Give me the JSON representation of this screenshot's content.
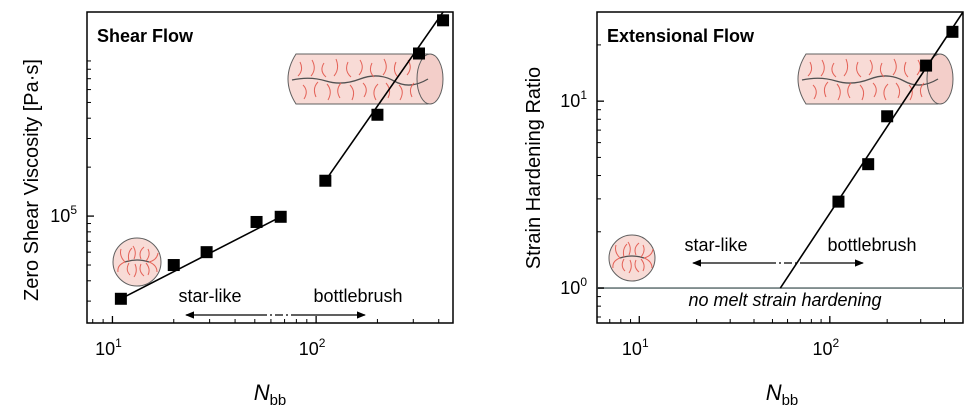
{
  "chart_data": [
    {
      "type": "scatter",
      "title": "Shear Flow",
      "xlabel": {
        "main": "N",
        "sub": "bb"
      },
      "ylabel": "Zero Shear Viscosity [Pa·s]",
      "xscale": "log",
      "yscale": "log",
      "xlim": [
        7.5,
        470
      ],
      "ylim": [
        22000,
        1800000
      ],
      "xticks": [
        {
          "value": 10,
          "base": "10",
          "exp": "1"
        },
        {
          "value": 100,
          "base": "10",
          "exp": "2"
        }
      ],
      "yticks": [
        {
          "value": 100000,
          "base": "10",
          "exp": "5"
        }
      ],
      "grid": false,
      "series": [
        {
          "marker": "square",
          "color": "#000000",
          "points": [
            {
              "x": 11,
              "y": 31000
            },
            {
              "x": 20,
              "y": 50000
            },
            {
              "x": 29,
              "y": 60000
            },
            {
              "x": 51,
              "y": 92000
            },
            {
              "x": 67,
              "y": 99000
            },
            {
              "x": 111,
              "y": 165000
            },
            {
              "x": 200,
              "y": 420000
            },
            {
              "x": 320,
              "y": 1000000
            },
            {
              "x": 420,
              "y": 1600000
            }
          ]
        }
      ],
      "fit_lines": [
        {
          "x": [
            11,
            67
          ],
          "y": [
            31000,
            99000
          ]
        },
        {
          "x": [
            111,
            470
          ],
          "y": [
            165000,
            2200000
          ]
        }
      ],
      "annotations": [
        {
          "text": "star-like",
          "direction": "left"
        },
        {
          "text": "bottlebrush",
          "direction": "right"
        }
      ]
    },
    {
      "type": "scatter",
      "title": "Extensional Flow",
      "xlabel": {
        "main": "N",
        "sub": "bb"
      },
      "ylabel": "Strain Hardening Ratio",
      "xscale": "log",
      "yscale": "log",
      "xlim": [
        6,
        500
      ],
      "ylim": [
        0.65,
        30
      ],
      "xticks": [
        {
          "value": 10,
          "base": "10",
          "exp": "1"
        },
        {
          "value": 100,
          "base": "10",
          "exp": "2"
        }
      ],
      "yticks": [
        {
          "value": 1,
          "base": "10",
          "exp": "0"
        },
        {
          "value": 10,
          "base": "10",
          "exp": "1"
        }
      ],
      "grid": false,
      "series": [
        {
          "marker": "square",
          "color": "#000000",
          "points": [
            {
              "x": 111,
              "y": 2.9
            },
            {
              "x": 159,
              "y": 4.6
            },
            {
              "x": 200,
              "y": 8.3
            },
            {
              "x": 320,
              "y": 15.5
            },
            {
              "x": 440,
              "y": 23.5
            }
          ]
        }
      ],
      "fit_lines": [
        {
          "x": [
            55,
            500
          ],
          "y": [
            1.0,
            30
          ]
        }
      ],
      "reference_line": {
        "y": 1,
        "color": "#7f8c8d"
      },
      "annotations": [
        {
          "text": "star-like",
          "direction": "left"
        },
        {
          "text": "bottlebrush",
          "direction": "right"
        },
        {
          "text": "no melt strain hardening"
        }
      ]
    }
  ]
}
